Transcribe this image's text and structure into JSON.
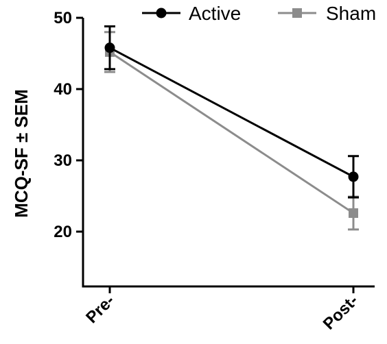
{
  "chart_data": {
    "type": "line",
    "title": "",
    "xlabel": "",
    "ylabel": "MCQ-SF ± SEM",
    "categories": [
      "Pre-",
      "Post-"
    ],
    "ylim": [
      10,
      50
    ],
    "yticks": [
      20,
      30,
      40,
      50
    ],
    "grid": false,
    "legend_position": "top",
    "series": [
      {
        "name": "Active",
        "values": [
          45.8,
          27.7
        ],
        "sem": [
          3.0,
          2.9
        ],
        "marker": "circle",
        "color": "#000000"
      },
      {
        "name": "Sham",
        "values": [
          45.2,
          22.6
        ],
        "sem": [
          2.8,
          2.3
        ],
        "marker": "square",
        "color": "#8c8c8c"
      }
    ]
  }
}
